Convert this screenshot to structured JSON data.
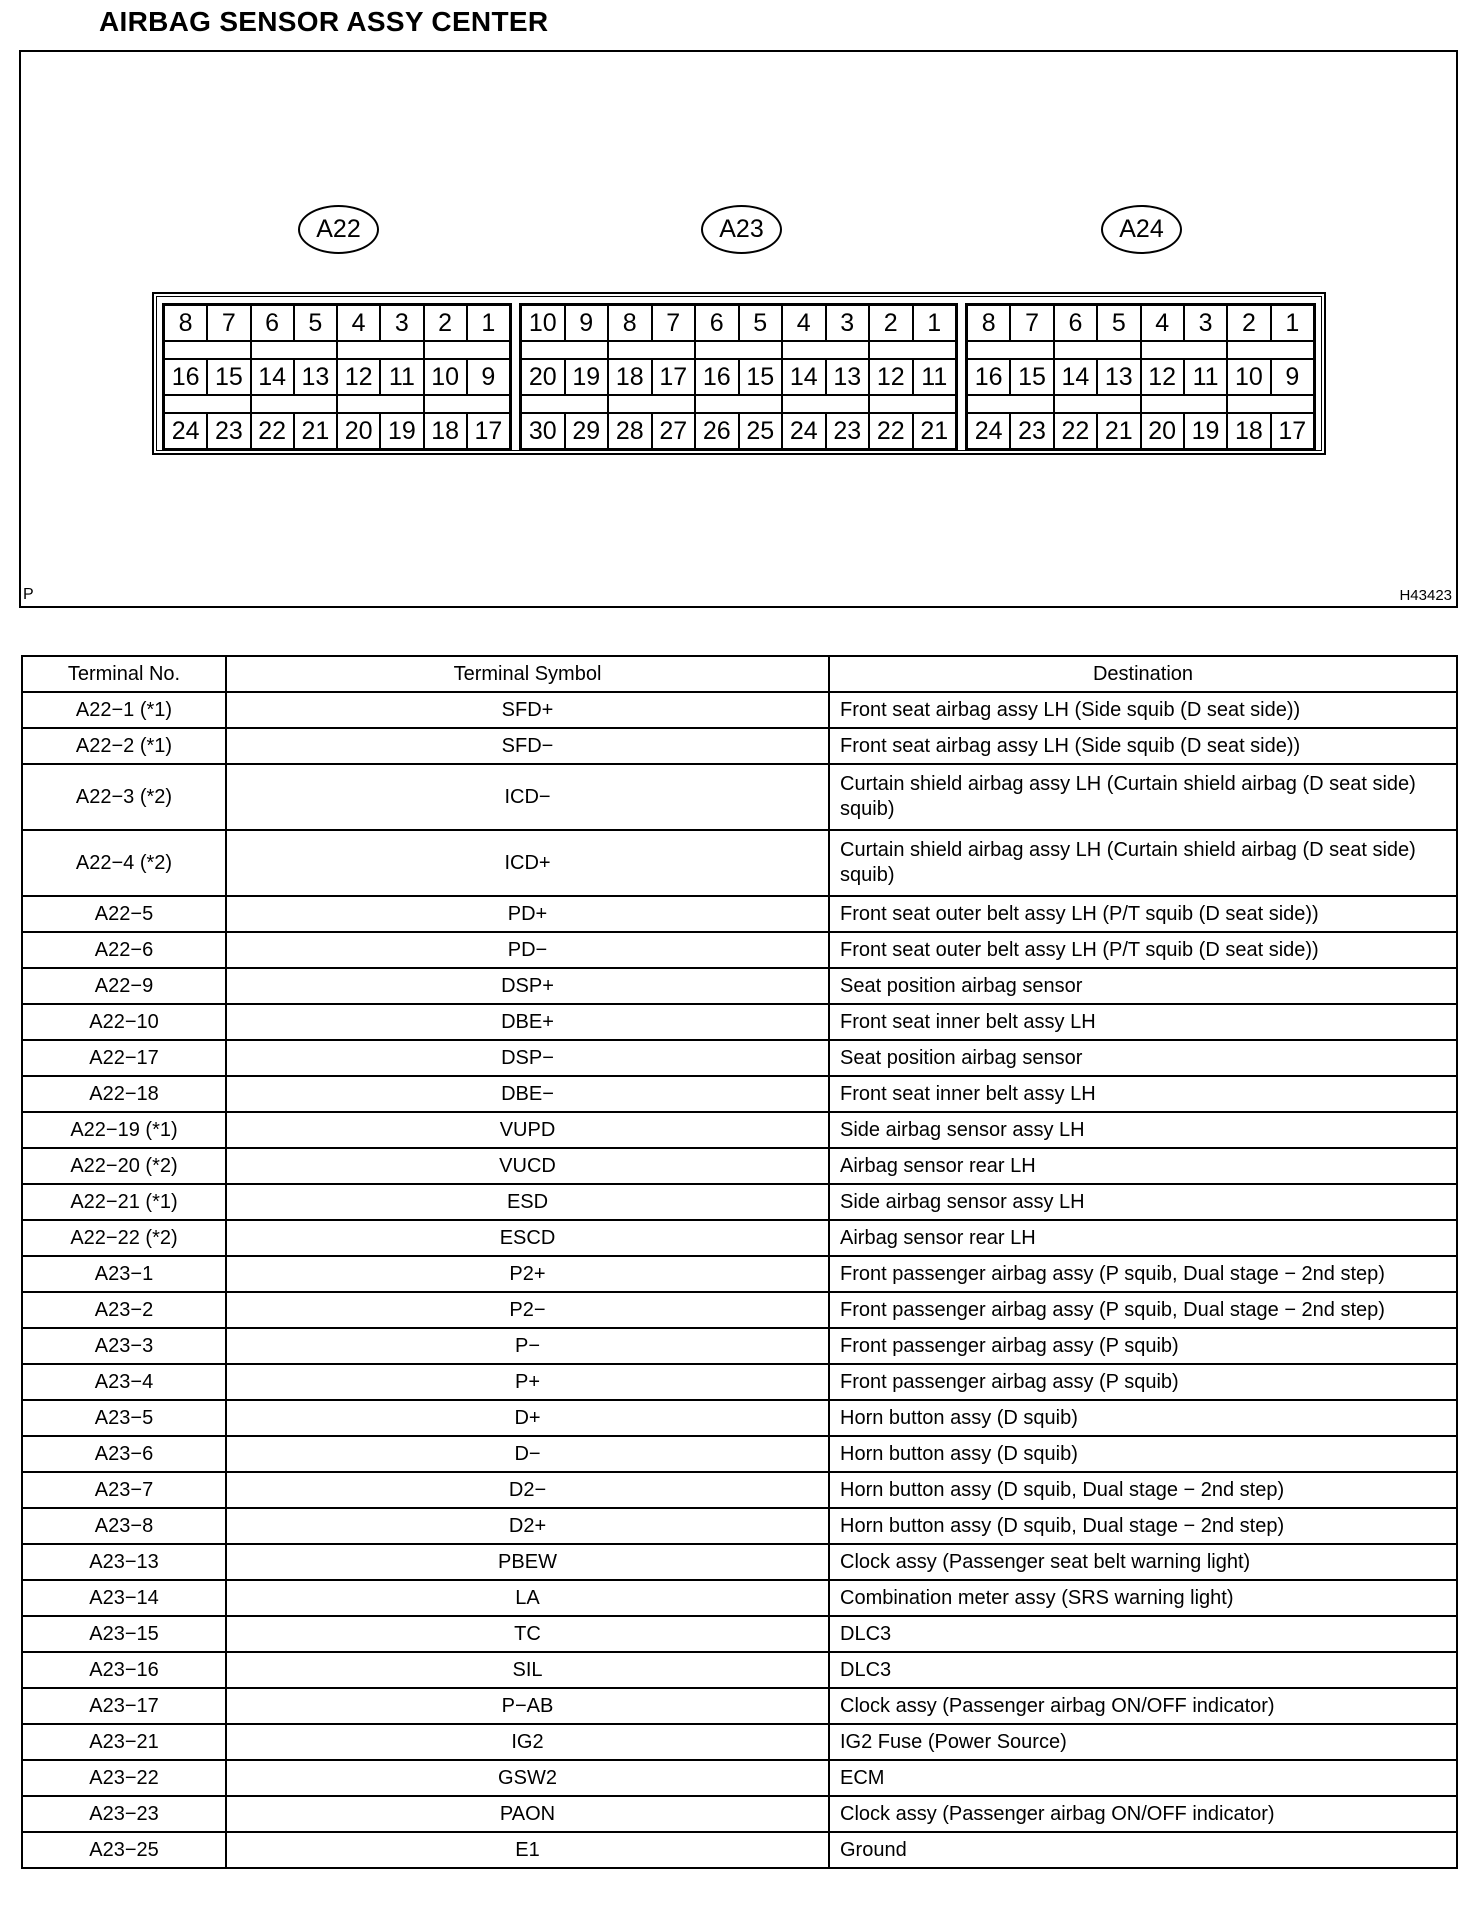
{
  "title": "AIRBAG SENSOR ASSY CENTER",
  "figure": {
    "corner_left": "P",
    "figure_id": "H43423",
    "connectors": [
      {
        "label": "A22",
        "rows": [
          [
            "8",
            "7",
            "6",
            "5",
            "4",
            "3",
            "2",
            "1"
          ],
          [
            "16",
            "15",
            "14",
            "13",
            "12",
            "11",
            "10",
            "9"
          ],
          [
            "24",
            "23",
            "22",
            "21",
            "20",
            "19",
            "18",
            "17"
          ]
        ]
      },
      {
        "label": "A23",
        "rows": [
          [
            "10",
            "9",
            "8",
            "7",
            "6",
            "5",
            "4",
            "3",
            "2",
            "1"
          ],
          [
            "20",
            "19",
            "18",
            "17",
            "16",
            "15",
            "14",
            "13",
            "12",
            "11"
          ],
          [
            "30",
            "29",
            "28",
            "27",
            "26",
            "25",
            "24",
            "23",
            "22",
            "21"
          ]
        ]
      },
      {
        "label": "A24",
        "rows": [
          [
            "8",
            "7",
            "6",
            "5",
            "4",
            "3",
            "2",
            "1"
          ],
          [
            "16",
            "15",
            "14",
            "13",
            "12",
            "11",
            "10",
            "9"
          ],
          [
            "24",
            "23",
            "22",
            "21",
            "20",
            "19",
            "18",
            "17"
          ]
        ]
      }
    ]
  },
  "table": {
    "headers": [
      "Terminal No.",
      "Terminal Symbol",
      "Destination"
    ],
    "rows": [
      [
        "A22−1 (*1)",
        "SFD+",
        "Front seat airbag assy LH (Side squib (D seat side))"
      ],
      [
        "A22−2 (*1)",
        "SFD−",
        "Front seat airbag assy LH (Side squib (D seat side))"
      ],
      [
        "A22−3 (*2)",
        "ICD−",
        "Curtain shield airbag assy LH (Curtain shield airbag (D seat side) squib)"
      ],
      [
        "A22−4 (*2)",
        "ICD+",
        "Curtain shield airbag assy LH (Curtain shield airbag (D seat side) squib)"
      ],
      [
        "A22−5",
        "PD+",
        "Front seat outer belt assy LH (P/T squib (D seat side))"
      ],
      [
        "A22−6",
        "PD−",
        "Front seat outer belt assy LH (P/T squib (D seat side))"
      ],
      [
        "A22−9",
        "DSP+",
        "Seat position airbag sensor"
      ],
      [
        "A22−10",
        "DBE+",
        "Front seat inner belt assy LH"
      ],
      [
        "A22−17",
        "DSP−",
        "Seat position airbag sensor"
      ],
      [
        "A22−18",
        "DBE−",
        "Front seat inner belt assy LH"
      ],
      [
        "A22−19 (*1)",
        "VUPD",
        "Side airbag sensor assy LH"
      ],
      [
        "A22−20 (*2)",
        "VUCD",
        "Airbag sensor rear LH"
      ],
      [
        "A22−21 (*1)",
        "ESD",
        "Side airbag sensor assy LH"
      ],
      [
        "A22−22 (*2)",
        "ESCD",
        "Airbag sensor rear LH"
      ],
      [
        "A23−1",
        "P2+",
        "Front passenger airbag assy (P squib, Dual stage − 2nd step)"
      ],
      [
        "A23−2",
        "P2−",
        "Front passenger airbag assy (P squib, Dual stage − 2nd step)"
      ],
      [
        "A23−3",
        "P−",
        "Front passenger airbag assy (P squib)"
      ],
      [
        "A23−4",
        "P+",
        "Front passenger airbag assy (P squib)"
      ],
      [
        "A23−5",
        "D+",
        "Horn button assy (D squib)"
      ],
      [
        "A23−6",
        "D−",
        "Horn button assy (D squib)"
      ],
      [
        "A23−7",
        "D2−",
        "Horn button assy (D squib, Dual stage − 2nd step)"
      ],
      [
        "A23−8",
        "D2+",
        "Horn button assy (D squib, Dual stage − 2nd step)"
      ],
      [
        "A23−13",
        "PBEW",
        "Clock assy (Passenger seat belt warning light)"
      ],
      [
        "A23−14",
        "LA",
        "Combination meter assy (SRS warning light)"
      ],
      [
        "A23−15",
        "TC",
        "DLC3"
      ],
      [
        "A23−16",
        "SIL",
        "DLC3"
      ],
      [
        "A23−17",
        "P−AB",
        "Clock assy (Passenger airbag ON/OFF indicator)"
      ],
      [
        "A23−21",
        "IG2",
        "IG2 Fuse (Power Source)"
      ],
      [
        "A23−22",
        "GSW2",
        "ECM"
      ],
      [
        "A23−23",
        "PAON",
        "Clock assy (Passenger airbag ON/OFF indicator)"
      ],
      [
        "A23−25",
        "E1",
        "Ground"
      ]
    ]
  }
}
